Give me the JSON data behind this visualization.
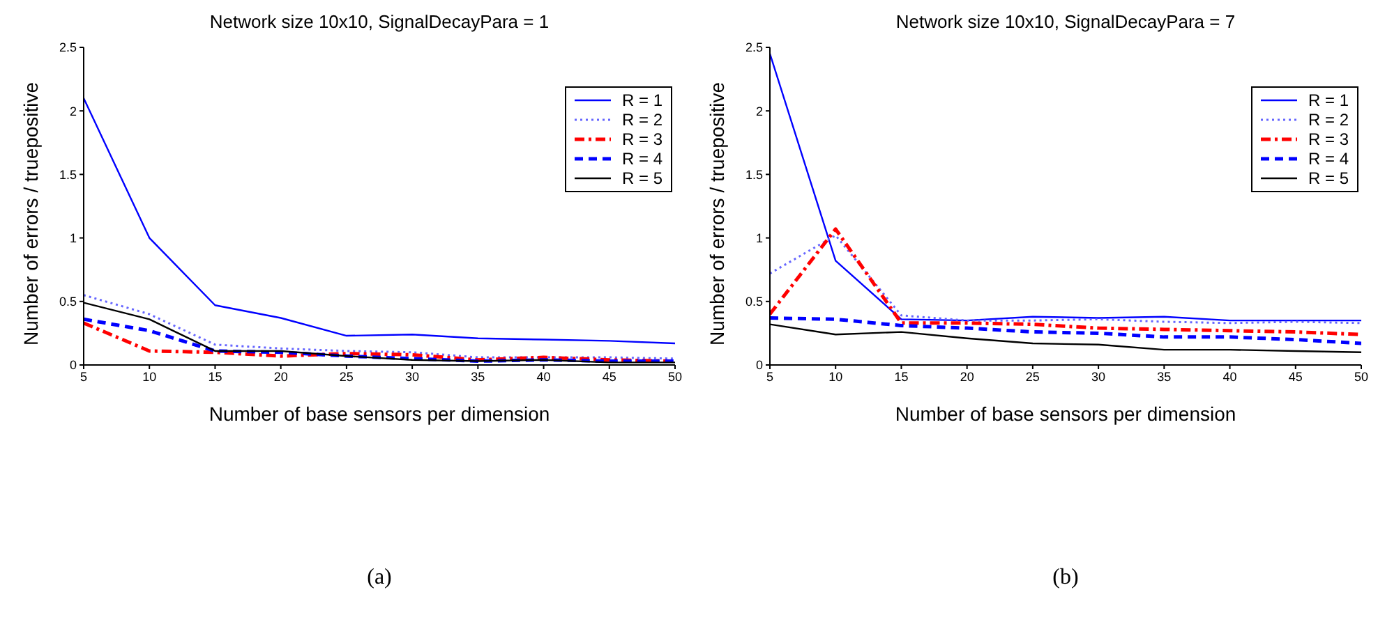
{
  "chart_data": [
    {
      "type": "line",
      "title": "Network size 10x10, SignalDecayPara = 1",
      "xlabel": "Number of base sensors per dimension",
      "ylabel": "Number of errors / truepositive",
      "annotations": [
        "(a)"
      ],
      "x": [
        5,
        10,
        15,
        20,
        25,
        30,
        35,
        40,
        45,
        50
      ],
      "xlim": [
        5,
        50
      ],
      "xticks": [
        5,
        10,
        15,
        20,
        25,
        30,
        35,
        40,
        45,
        50
      ],
      "ylim": [
        0,
        2.5
      ],
      "yticks": [
        0,
        0.5,
        1,
        1.5,
        2,
        2.5
      ],
      "grid": false,
      "legend": "top right",
      "marker": "none",
      "series": [
        {
          "name": "R = 1",
          "color": "#0000ff",
          "line_style": "solid",
          "values": [
            2.1,
            1.0,
            0.47,
            0.37,
            0.23,
            0.24,
            0.21,
            0.2,
            0.19,
            0.17
          ]
        },
        {
          "name": "R = 2",
          "color": "#6666ff",
          "line_style": "dotted",
          "values": [
            0.55,
            0.4,
            0.16,
            0.13,
            0.11,
            0.1,
            0.06,
            0.06,
            0.06,
            0.05
          ]
        },
        {
          "name": "R = 3",
          "color": "#ff0000",
          "line_style": "dashdot",
          "values": [
            0.33,
            0.11,
            0.1,
            0.07,
            0.09,
            0.08,
            0.04,
            0.06,
            0.04,
            0.03
          ]
        },
        {
          "name": "R = 4",
          "color": "#0000ff",
          "line_style": "dashed",
          "values": [
            0.36,
            0.27,
            0.11,
            0.1,
            0.07,
            0.05,
            0.03,
            0.04,
            0.03,
            0.03
          ]
        },
        {
          "name": "R = 5",
          "color": "#000000",
          "line_style": "solid",
          "values": [
            0.49,
            0.36,
            0.11,
            0.11,
            0.07,
            0.04,
            0.03,
            0.04,
            0.02,
            0.02
          ]
        }
      ]
    },
    {
      "type": "line",
      "title": "Network size 10x10, SignalDecayPara = 7",
      "xlabel": "Number of base sensors per dimension",
      "ylabel": "Number of errors / truepositive",
      "annotations": [
        "(b)"
      ],
      "x": [
        5,
        10,
        15,
        20,
        25,
        30,
        35,
        40,
        45,
        50
      ],
      "xlim": [
        5,
        50
      ],
      "xticks": [
        5,
        10,
        15,
        20,
        25,
        30,
        35,
        40,
        45,
        50
      ],
      "ylim": [
        0,
        2.5
      ],
      "yticks": [
        0,
        0.5,
        1,
        1.5,
        2,
        2.5
      ],
      "grid": false,
      "legend": "top right",
      "marker": "none",
      "series": [
        {
          "name": "R = 1",
          "color": "#0000ff",
          "line_style": "solid",
          "values": [
            2.45,
            0.82,
            0.36,
            0.35,
            0.38,
            0.37,
            0.38,
            0.35,
            0.35,
            0.35
          ]
        },
        {
          "name": "R = 2",
          "color": "#6666ff",
          "line_style": "dotted",
          "values": [
            0.72,
            1.02,
            0.39,
            0.35,
            0.35,
            0.36,
            0.34,
            0.33,
            0.34,
            0.33
          ]
        },
        {
          "name": "R = 3",
          "color": "#ff0000",
          "line_style": "dashdot",
          "values": [
            0.4,
            1.07,
            0.33,
            0.33,
            0.32,
            0.29,
            0.28,
            0.27,
            0.26,
            0.24
          ]
        },
        {
          "name": "R = 4",
          "color": "#0000ff",
          "line_style": "dashed",
          "values": [
            0.37,
            0.36,
            0.31,
            0.29,
            0.26,
            0.25,
            0.22,
            0.22,
            0.2,
            0.17
          ]
        },
        {
          "name": "R = 5",
          "color": "#000000",
          "line_style": "solid",
          "values": [
            0.32,
            0.24,
            0.26,
            0.21,
            0.17,
            0.16,
            0.12,
            0.12,
            0.11,
            0.1
          ]
        }
      ]
    }
  ]
}
